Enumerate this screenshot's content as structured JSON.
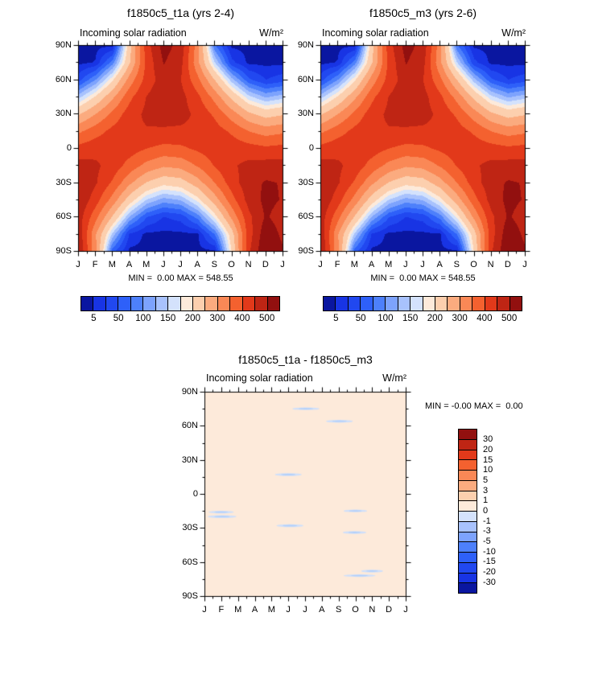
{
  "chart_data": {
    "type": "heatmap",
    "description": "Filled contour plots of zonal-mean incoming solar radiation (W/m2) vs latitude and month for two model runs, and their difference",
    "months": [
      "J",
      "F",
      "M",
      "A",
      "M",
      "J",
      "J",
      "A",
      "S",
      "O",
      "N",
      "D",
      "J"
    ],
    "lat_ticks": [
      "90N",
      "60N",
      "30N",
      "0",
      "30S",
      "60S",
      "90S"
    ],
    "lat_values": [
      90,
      75,
      60,
      45,
      30,
      15,
      0,
      -15,
      -30,
      -45,
      -60,
      -75,
      -90
    ],
    "levels": [
      5,
      25,
      50,
      75,
      100,
      125,
      150,
      175,
      200,
      250,
      300,
      350,
      400,
      450,
      500
    ],
    "palette": [
      "#0a16a0",
      "#1834e4",
      "#2148f0",
      "#2e60f9",
      "#4d80fb",
      "#7da3fd",
      "#a8c2fd",
      "#d4e2fc",
      "#fdeada",
      "#fccfae",
      "#fbab7f",
      "#fa8856",
      "#f4612f",
      "#e2391a",
      "#bf2514",
      "#92100f"
    ],
    "colorbar": {
      "labels": [
        "5",
        "50",
        "100",
        "150",
        "200",
        "300",
        "400",
        "500"
      ],
      "boundary_indices": [
        1,
        3,
        5,
        7,
        9,
        11,
        13,
        15
      ]
    },
    "charts": [
      {
        "title": "f1850c5_t1a (yrs 2-4)",
        "subtitle": "Incoming solar radiation",
        "units": "W/m²",
        "min_max_text": "MIN =  0.00 MAX = 548.55",
        "grid_rows_lat_90N_to_90S_cols_months_Jan_to_Jan": [
          [
            0,
            0,
            0,
            230,
            429,
            521,
            482,
            321,
            78,
            0,
            0,
            0,
            0
          ],
          [
            0,
            6,
            87,
            245,
            414,
            503,
            466,
            312,
            151,
            32,
            0,
            0,
            0
          ],
          [
            38,
            99,
            194,
            321,
            422,
            475,
            451,
            363,
            249,
            135,
            55,
            25,
            38
          ],
          [
            139,
            204,
            289,
            386,
            452,
            482,
            468,
            412,
            331,
            237,
            158,
            121,
            139
          ],
          [
            244,
            300,
            364,
            427,
            461,
            474,
            467,
            439,
            390,
            324,
            260,
            228,
            244
          ],
          [
            340,
            378,
            415,
            440,
            445,
            442,
            441,
            438,
            424,
            391,
            350,
            327,
            340
          ],
          [
            417,
            432,
            437,
            424,
            401,
            385,
            390,
            410,
            428,
            431,
            420,
            410,
            417
          ],
          [
            470,
            459,
            430,
            380,
            334,
            307,
            316,
            355,
            404,
            443,
            464,
            471,
            470
          ],
          [
            497,
            456,
            393,
            311,
            247,
            214,
            226,
            278,
            352,
            426,
            481,
            505,
            497
          ],
          [
            496,
            424,
            330,
            223,
            148,
            114,
            127,
            185,
            276,
            380,
            470,
            514,
            496
          ],
          [
            476,
            368,
            244,
            122,
            51,
            24,
            34,
            85,
            182,
            311,
            437,
            506,
            476
          ],
          [
            488,
            306,
            142,
            22,
            0,
            0,
            0,
            2,
            76,
            227,
            426,
            536,
            488
          ],
          [
            506,
            311,
            58,
            0,
            0,
            0,
            0,
            0,
            0,
            203,
            441,
            549,
            506
          ]
        ]
      },
      {
        "title": "f1850c5_m3 (yrs 2-6)",
        "subtitle": "Incoming solar radiation",
        "units": "W/m²",
        "min_max_text": "MIN =  0.00 MAX = 548.55",
        "grid_same_as_chart": 0
      },
      {
        "title": "f1850c5_t1a - f1850c5_m3",
        "subtitle": "Incoming solar radiation",
        "units": "W/m²",
        "min_max_text": "MIN = -0.00 MAX =  0.00",
        "levels": [
          -30,
          -20,
          -15,
          -10,
          -5,
          -3,
          -1,
          0,
          1,
          3,
          5,
          10,
          15,
          20,
          30
        ],
        "uniform_value": 0,
        "background_bin_color": "#fdeada",
        "streak_color": "#cfe0fb",
        "streak_core_color": "#b3d0fa",
        "anomaly_streaks": [
          {
            "month": 6.05,
            "lat": 75,
            "width_months": 1.6
          },
          {
            "month": 8.05,
            "lat": 64,
            "width_months": 1.6
          },
          {
            "month": 5.0,
            "lat": 17,
            "width_months": 1.6
          },
          {
            "month": 1.0,
            "lat": -16,
            "width_months": 1.5
          },
          {
            "month": 1.05,
            "lat": -20,
            "width_months": 1.7
          },
          {
            "month": 9.0,
            "lat": -15,
            "width_months": 1.4
          },
          {
            "month": 5.1,
            "lat": -28,
            "width_months": 1.6
          },
          {
            "month": 8.95,
            "lat": -34,
            "width_months": 1.4
          },
          {
            "month": 10.0,
            "lat": -68,
            "width_months": 1.3
          },
          {
            "month": 9.25,
            "lat": -72,
            "width_months": 1.9
          }
        ]
      }
    ],
    "diff_colorbar": {
      "labels_top_to_bottom": [
        "30",
        "20",
        "15",
        "10",
        "5",
        "3",
        "1",
        "0",
        "-1",
        "-3",
        "-5",
        "-10",
        "-15",
        "-20",
        "-30"
      ]
    }
  }
}
